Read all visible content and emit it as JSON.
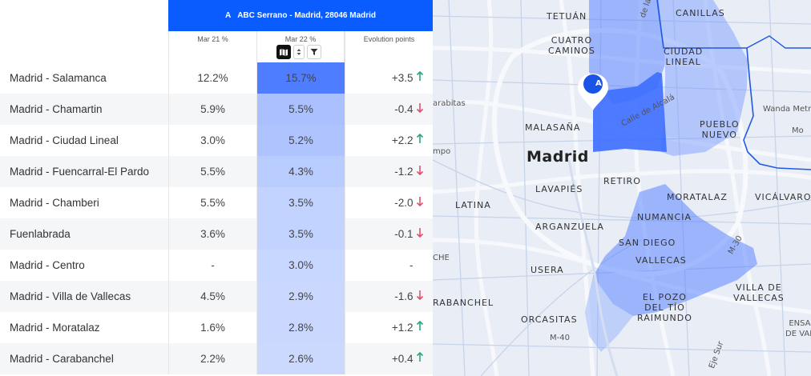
{
  "header": {
    "marker_letter": "A",
    "location": "ABC Serrano - Madrid, 28046 Madrid",
    "accent_color": "#0b5cff"
  },
  "columns": {
    "mar21": "Mar 21 %",
    "mar22": "Mar 22 %",
    "evolution": "Evolution points"
  },
  "controls": [
    "map-icon",
    "sort-icon",
    "filter-icon"
  ],
  "rows": [
    {
      "name": "Madrid - Salamanca",
      "mar21": "12.2%",
      "mar22": "15.7%",
      "evo": "+3.5",
      "trend": "up",
      "heat": 1.0
    },
    {
      "name": "Madrid - Chamartin",
      "mar21": "5.9%",
      "mar22": "5.5%",
      "evo": "-0.4",
      "trend": "down",
      "heat": 0.35
    },
    {
      "name": "Madrid - Ciudad Lineal",
      "mar21": "3.0%",
      "mar22": "5.2%",
      "evo": "+2.2",
      "trend": "up",
      "heat": 0.33
    },
    {
      "name": "Madrid - Fuencarral-El Pardo",
      "mar21": "5.5%",
      "mar22": "4.3%",
      "evo": "-1.2",
      "trend": "down",
      "heat": 0.27
    },
    {
      "name": "Madrid - Chamberi",
      "mar21": "5.5%",
      "mar22": "3.5%",
      "evo": "-2.0",
      "trend": "down",
      "heat": 0.22
    },
    {
      "name": "Fuenlabrada",
      "mar21": "3.6%",
      "mar22": "3.5%",
      "evo": "-0.1",
      "trend": "down",
      "heat": 0.22
    },
    {
      "name": "Madrid - Centro",
      "mar21": "-",
      "mar22": "3.0%",
      "evo": "-",
      "trend": "none",
      "heat": 0.19
    },
    {
      "name": "Madrid - Villa de Vallecas",
      "mar21": "4.5%",
      "mar22": "2.9%",
      "evo": "-1.6",
      "trend": "down",
      "heat": 0.18
    },
    {
      "name": "Madrid - Moratalaz",
      "mar21": "1.6%",
      "mar22": "2.8%",
      "evo": "+1.2",
      "trend": "up",
      "heat": 0.18
    },
    {
      "name": "Madrid - Carabanchel",
      "mar21": "2.2%",
      "mar22": "2.6%",
      "evo": "+0.4",
      "trend": "up",
      "heat": 0.17
    }
  ],
  "colors": {
    "up": "#2aa876",
    "down": "#e0506e",
    "heat_strong": "#4f7dff",
    "heat_light": "#cfdcff"
  },
  "map": {
    "pin_letter": "A",
    "labels": {
      "tetuan": "TETUÁN",
      "canillas": "CANILLAS",
      "cuatro_caminos": "CUATRO\nCAMINOS",
      "ciudad_lineal": "CIUDAD\nLINEAL",
      "arabitas": "arabitas",
      "malasana": "MALASAÑA",
      "puerto_nuevo": "PUEBLO\nNUEVO",
      "wanda": "Wanda Metr",
      "mo": "Mo",
      "mpo": "mpo",
      "madrid": "Madrid",
      "lavapies": "LAVAPIÉS",
      "retiro": "RETIRO",
      "moratalaz": "MORATALAZ",
      "vicalvaro": "VICÁLVARO",
      "latina": "LATINA",
      "numancia": "NUMANCIA",
      "arganzuela": "ARGANZUELA",
      "san_diego": "SAN DIEGO",
      "vallecas": "VALLECAS",
      "che": "CHE",
      "usera": "USERA",
      "villa_de_vallecas": "VILLA DE\nVALLECAS",
      "el_pozo": "EL POZO\nDEL TÍO\nRAIMUNDO",
      "carabanchel": "RABANCHEL",
      "orcasitas": "ORCASITAS",
      "ensanche": "ENSA\nDE VAL",
      "m40": "M-40",
      "m30": "M-30",
      "calle_alcala": "Calle de Alcalá",
      "paz": "de la Paz",
      "eje_sur": "Eje Sur"
    }
  }
}
